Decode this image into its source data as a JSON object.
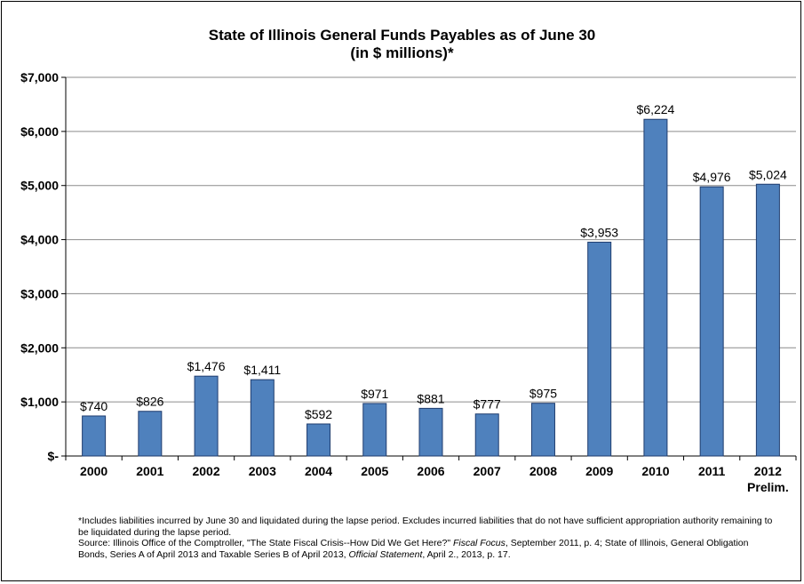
{
  "chart_data": {
    "type": "bar",
    "title": "State of Illinois General Funds Payables as of June 30",
    "subtitle": "(in $ millions)*",
    "categories": [
      "2000",
      "2001",
      "2002",
      "2003",
      "2004",
      "2005",
      "2006",
      "2007",
      "2008",
      "2009",
      "2010",
      "2011",
      "2012"
    ],
    "category_sublabels": [
      "",
      "",
      "",
      "",
      "",
      "",
      "",
      "",
      "",
      "",
      "",
      "",
      "Prelim."
    ],
    "values": [
      740,
      826,
      1476,
      1411,
      592,
      971,
      881,
      777,
      975,
      3953,
      6224,
      4976,
      5024
    ],
    "data_labels": [
      "$740",
      "$826",
      "$1,476",
      "$1,411",
      "$592",
      "$971",
      "$881",
      "$777",
      "$975",
      "$3,953",
      "$6,224",
      "$4,976",
      "$5,024"
    ],
    "y_ticks": [
      0,
      1000,
      2000,
      3000,
      4000,
      5000,
      6000,
      7000
    ],
    "y_tick_labels": [
      "$-",
      "$1,000",
      "$2,000",
      "$3,000",
      "$4,000",
      "$5,000",
      "$6,000",
      "$7,000"
    ],
    "ylim": [
      0,
      7000
    ],
    "grid": true,
    "bar_color": "#4F81BD",
    "bar_edge_color": "#1F3C6E"
  },
  "footnote": {
    "line1": "*Includes liabilities incurred by June 30 and liquidated during the lapse period. Excludes incurred liabilities that do not have sufficient appropriation authority remaining to be liquidated during the lapse period.",
    "line2_a": "Source: Illinois Office of the Comptroller, \"The State Fiscal Crisis--How Did We Get Here?\" ",
    "line2_b": "Fiscal Focus",
    "line2_c": ", September 2011, p. 4; State of Illinois, General Obligation Bonds, Series A of April 2013 and Taxable Series B of April 2013, ",
    "line2_d": "Official Statement",
    "line2_e": ", April 2., 2013, p. 17."
  }
}
